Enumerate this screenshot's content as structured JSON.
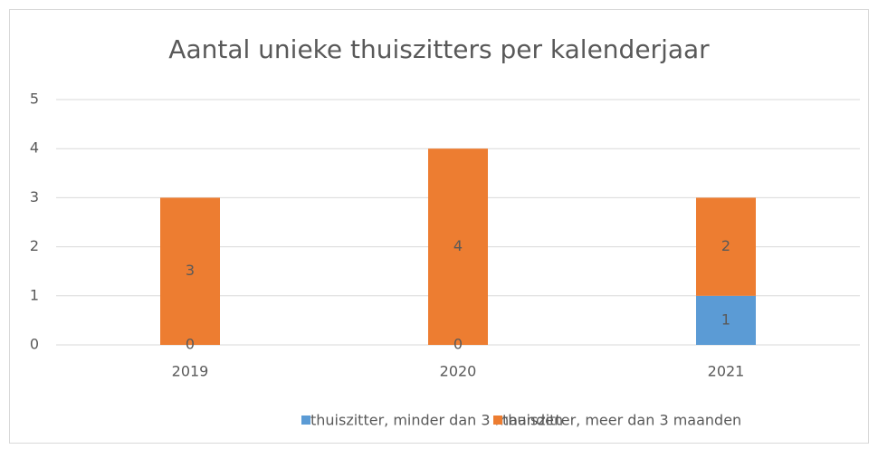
{
  "chart_data": {
    "type": "stacked_bar",
    "title": "Aantal unieke thuiszitters per kalenderjaar",
    "categories": [
      "2019",
      "2020",
      "2021"
    ],
    "series": [
      {
        "name": "thuiszitter, minder dan 3 maanden",
        "color": "#5b9bd5",
        "values": [
          0,
          0,
          1
        ]
      },
      {
        "name": "thuiszitter, meer dan 3 maanden",
        "color": "#ed7d31",
        "values": [
          3,
          4,
          2
        ]
      }
    ],
    "ylim": [
      0,
      5
    ],
    "yticks": [
      0,
      1,
      2,
      3,
      4,
      5
    ],
    "grid": true,
    "legend": "bottom"
  }
}
